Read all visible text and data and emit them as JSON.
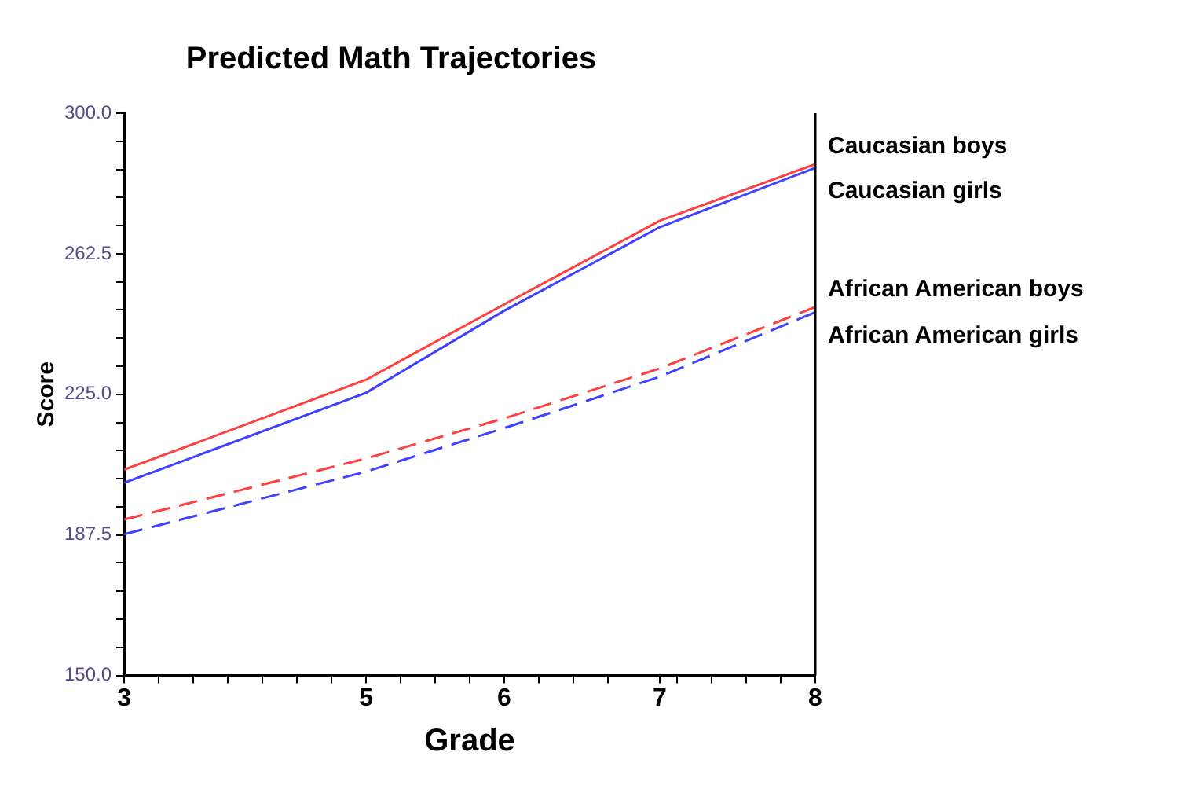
{
  "chart_data": {
    "type": "line",
    "title": "Predicted Math Trajectories",
    "xlabel": "Grade",
    "ylabel": "Score",
    "x": [
      3,
      4.75,
      5.75,
      6.875,
      8
    ],
    "series": [
      {
        "name": "Caucasian boys",
        "color": "#ff4040",
        "line_style": "solid",
        "values": [
          204.9,
          228.9,
          249,
          271.3,
          286.4
        ]
      },
      {
        "name": "Caucasian girls",
        "color": "#4040ff",
        "line_style": "solid",
        "values": [
          201.4,
          225.4,
          247.3,
          269.6,
          285.4
        ]
      },
      {
        "name": "African American boys",
        "color": "#ff4040",
        "line_style": "dashed",
        "values": [
          191.6,
          207.9,
          218.6,
          231.9,
          248.3
        ]
      },
      {
        "name": "African American girls",
        "color": "#4040ff",
        "line_style": "dashed",
        "values": [
          187.7,
          204.4,
          216,
          229.7,
          246.9
        ]
      }
    ],
    "xlim": [
      3,
      8
    ],
    "xticks": [
      3,
      {
        "value": 3.25,
        "label": null
      },
      {
        "value": 3.5,
        "label": null
      },
      {
        "value": 3.75,
        "label": null
      },
      {
        "value": 4,
        "label": null
      },
      {
        "value": 4.25,
        "label": null
      },
      {
        "value": 4.5,
        "label": null
      },
      {
        "value": 4.75,
        "label": "5"
      },
      {
        "value": 5,
        "label": null
      },
      {
        "value": 5.25,
        "label": null
      },
      {
        "value": 5.5,
        "label": null
      },
      {
        "value": 5.75,
        "label": "6"
      },
      {
        "value": 6,
        "label": null
      },
      {
        "value": 6.25,
        "label": null
      },
      {
        "value": 6.5,
        "label": null
      },
      {
        "value": 6.875,
        "label": "7"
      },
      {
        "value": 7,
        "label": null
      },
      {
        "value": 7.25,
        "label": null
      },
      {
        "value": 7.5,
        "label": null
      },
      {
        "value": 7.75,
        "label": null
      },
      8
    ],
    "ylim": [
      150,
      300
    ],
    "yticks": [
      {
        "value": 150,
        "label": "150.0"
      },
      {
        "value": 157.5,
        "label": null
      },
      {
        "value": 165,
        "label": null
      },
      {
        "value": 172.5,
        "label": null
      },
      {
        "value": 180,
        "label": null
      },
      {
        "value": 187.5,
        "label": "187.5"
      },
      {
        "value": 195,
        "label": null
      },
      {
        "value": 202.5,
        "label": null
      },
      {
        "value": 210,
        "label": null
      },
      {
        "value": 217.5,
        "label": null
      },
      {
        "value": 225,
        "label": "225.0"
      },
      {
        "value": 232.5,
        "label": null
      },
      {
        "value": 240,
        "label": null
      },
      {
        "value": 247.5,
        "label": null
      },
      {
        "value": 255,
        "label": null
      },
      {
        "value": 262.5,
        "label": "262.5"
      },
      {
        "value": 270,
        "label": null
      },
      {
        "value": 277.5,
        "label": null
      },
      {
        "value": 285,
        "label": null
      },
      {
        "value": 292.5,
        "label": null
      },
      {
        "value": 300,
        "label": "300.0"
      }
    ],
    "grid": false,
    "legend": false,
    "marker": "none"
  }
}
